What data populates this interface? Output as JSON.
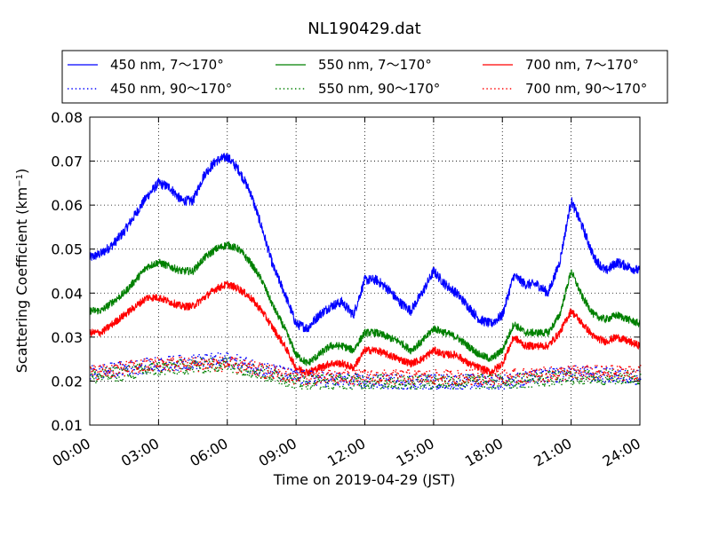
{
  "chart_data": {
    "type": "line",
    "title": "NL190429.dat",
    "xlabel": "Time on 2019-04-29 (JST)",
    "ylabel_main": "Scattering Coefficient (km",
    "ylabel_sup": "−1",
    "ylabel_close": ")",
    "xlim": [
      "00:00",
      "24:00"
    ],
    "ylim": [
      0.01,
      0.08
    ],
    "x_ticks": [
      "00:00",
      "03:00",
      "06:00",
      "09:00",
      "12:00",
      "15:00",
      "18:00",
      "21:00",
      "24:00"
    ],
    "y_ticks": [
      "0.01",
      "0.02",
      "0.03",
      "0.04",
      "0.05",
      "0.06",
      "0.07",
      "0.08"
    ],
    "grid": true,
    "legend_position": "top, above plot, 3 columns",
    "series": [
      {
        "name": "450 nm, 7～170°",
        "color": "#0000ff",
        "style": "solid",
        "x": [
          "00:00",
          "00:30",
          "01:00",
          "01:30",
          "02:00",
          "02:30",
          "03:00",
          "03:30",
          "04:00",
          "04:30",
          "05:00",
          "05:30",
          "06:00",
          "06:30",
          "07:00",
          "07:30",
          "08:00",
          "08:30",
          "09:00",
          "09:30",
          "10:00",
          "10:30",
          "11:00",
          "11:30",
          "12:00",
          "12:30",
          "13:00",
          "13:30",
          "14:00",
          "14:30",
          "15:00",
          "15:30",
          "16:00",
          "16:30",
          "17:00",
          "17:30",
          "18:00",
          "18:30",
          "19:00",
          "19:30",
          "20:00",
          "20:30",
          "21:00",
          "21:30",
          "22:00",
          "22:30",
          "23:00",
          "23:30",
          "24:00"
        ],
        "y": [
          0.048,
          0.049,
          0.051,
          0.054,
          0.058,
          0.062,
          0.065,
          0.064,
          0.061,
          0.061,
          0.067,
          0.07,
          0.071,
          0.068,
          0.063,
          0.055,
          0.046,
          0.04,
          0.033,
          0.032,
          0.035,
          0.037,
          0.038,
          0.035,
          0.043,
          0.043,
          0.041,
          0.038,
          0.036,
          0.04,
          0.045,
          0.042,
          0.04,
          0.037,
          0.034,
          0.033,
          0.035,
          0.044,
          0.042,
          0.042,
          0.04,
          0.047,
          0.061,
          0.055,
          0.048,
          0.045,
          0.047,
          0.046,
          0.045
        ]
      },
      {
        "name": "550 nm, 7～170°",
        "color": "#008000",
        "style": "solid",
        "x": [
          "00:00",
          "00:30",
          "01:00",
          "01:30",
          "02:00",
          "02:30",
          "03:00",
          "03:30",
          "04:00",
          "04:30",
          "05:00",
          "05:30",
          "06:00",
          "06:30",
          "07:00",
          "07:30",
          "08:00",
          "08:30",
          "09:00",
          "09:30",
          "10:00",
          "10:30",
          "11:00",
          "11:30",
          "12:00",
          "12:30",
          "13:00",
          "13:30",
          "14:00",
          "14:30",
          "15:00",
          "15:30",
          "16:00",
          "16:30",
          "17:00",
          "17:30",
          "18:00",
          "18:30",
          "19:00",
          "19:30",
          "20:00",
          "20:30",
          "21:00",
          "21:30",
          "22:00",
          "22:30",
          "23:00",
          "23:30",
          "24:00"
        ],
        "y": [
          0.036,
          0.036,
          0.038,
          0.04,
          0.043,
          0.046,
          0.047,
          0.046,
          0.045,
          0.045,
          0.048,
          0.05,
          0.051,
          0.05,
          0.047,
          0.043,
          0.037,
          0.032,
          0.026,
          0.024,
          0.026,
          0.028,
          0.028,
          0.027,
          0.031,
          0.031,
          0.03,
          0.029,
          0.027,
          0.029,
          0.032,
          0.031,
          0.03,
          0.028,
          0.026,
          0.025,
          0.027,
          0.033,
          0.031,
          0.031,
          0.031,
          0.035,
          0.045,
          0.039,
          0.035,
          0.034,
          0.035,
          0.034,
          0.033
        ]
      },
      {
        "name": "700 nm, 7～170°",
        "color": "#ff0000",
        "style": "solid",
        "x": [
          "00:00",
          "00:30",
          "01:00",
          "01:30",
          "02:00",
          "02:30",
          "03:00",
          "03:30",
          "04:00",
          "04:30",
          "05:00",
          "05:30",
          "06:00",
          "06:30",
          "07:00",
          "07:30",
          "08:00",
          "08:30",
          "09:00",
          "09:30",
          "10:00",
          "10:30",
          "11:00",
          "11:30",
          "12:00",
          "12:30",
          "13:00",
          "13:30",
          "14:00",
          "14:30",
          "15:00",
          "15:30",
          "16:00",
          "16:30",
          "17:00",
          "17:30",
          "18:00",
          "18:30",
          "19:00",
          "19:30",
          "20:00",
          "20:30",
          "21:00",
          "21:30",
          "22:00",
          "22:30",
          "23:00",
          "23:30",
          "24:00"
        ],
        "y": [
          0.031,
          0.031,
          0.033,
          0.035,
          0.037,
          0.039,
          0.039,
          0.038,
          0.037,
          0.037,
          0.039,
          0.041,
          0.042,
          0.041,
          0.039,
          0.036,
          0.032,
          0.028,
          0.023,
          0.022,
          0.023,
          0.024,
          0.024,
          0.023,
          0.027,
          0.027,
          0.026,
          0.025,
          0.024,
          0.025,
          0.027,
          0.026,
          0.026,
          0.024,
          0.023,
          0.022,
          0.024,
          0.03,
          0.028,
          0.028,
          0.028,
          0.031,
          0.036,
          0.033,
          0.03,
          0.029,
          0.03,
          0.029,
          0.028
        ]
      },
      {
        "name": "450 nm, 90～170°",
        "color": "#0000ff",
        "style": "dotted",
        "x": [
          "00:00",
          "03:00",
          "06:00",
          "09:00",
          "12:00",
          "15:00",
          "18:00",
          "21:00",
          "24:00"
        ],
        "y": [
          0.022,
          0.024,
          0.025,
          0.021,
          0.02,
          0.02,
          0.02,
          0.022,
          0.021
        ]
      },
      {
        "name": "550 nm, 90～170°",
        "color": "#008000",
        "style": "dotted",
        "x": [
          "00:00",
          "03:00",
          "06:00",
          "09:00",
          "12:00",
          "15:00",
          "18:00",
          "21:00",
          "24:00"
        ],
        "y": [
          0.021,
          0.023,
          0.024,
          0.02,
          0.02,
          0.02,
          0.02,
          0.021,
          0.021
        ]
      },
      {
        "name": "700 nm, 90～170°",
        "color": "#ff0000",
        "style": "dotted",
        "x": [
          "00:00",
          "03:00",
          "06:00",
          "09:00",
          "12:00",
          "15:00",
          "18:00",
          "21:00",
          "24:00"
        ],
        "y": [
          0.022,
          0.024,
          0.024,
          0.021,
          0.021,
          0.021,
          0.021,
          0.022,
          0.022
        ]
      }
    ],
    "legend_order": [
      "450 nm, 7～170°",
      "450 nm, 90～170°",
      "550 nm, 7～170°",
      "550 nm, 90～170°",
      "700 nm, 7～170°",
      "700 nm, 90～170°"
    ]
  }
}
